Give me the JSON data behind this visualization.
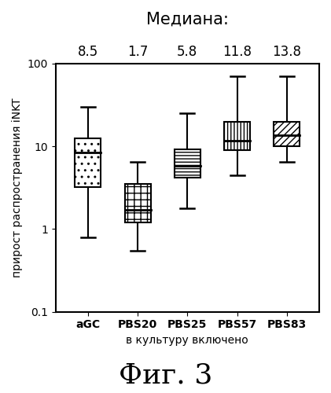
{
  "title": "Медиана:",
  "xlabel": "в культуру включено",
  "ylabel": "прирост распространения iNKT",
  "caption": "Фиг. 3",
  "categories": [
    "aGC",
    "PBS20",
    "PBS25",
    "PBS57",
    "PBS83"
  ],
  "medians": [
    8.5,
    1.7,
    5.8,
    11.8,
    13.8
  ],
  "boxes": [
    {
      "whislo": 0.8,
      "q1": 3.2,
      "med": 8.5,
      "q3": 12.5,
      "whishi": 30.0
    },
    {
      "whislo": 0.55,
      "q1": 1.2,
      "med": 1.7,
      "q3": 3.5,
      "whishi": 6.5
    },
    {
      "whislo": 1.8,
      "q1": 4.2,
      "med": 5.8,
      "q3": 9.2,
      "whishi": 25.0
    },
    {
      "whislo": 4.5,
      "q1": 9.0,
      "med": 11.8,
      "q3": 20.0,
      "whishi": 70.0
    },
    {
      "whislo": 6.5,
      "q1": 10.0,
      "med": 13.8,
      "q3": 20.0,
      "whishi": 70.0
    }
  ],
  "hatch_patterns": [
    "..",
    "++",
    "----",
    "||||",
    "////"
  ],
  "background_color": "#ffffff",
  "ylim_low": 0.1,
  "ylim_high": 100,
  "yticks": [
    0.1,
    1,
    10,
    100
  ],
  "title_fontsize": 15,
  "label_fontsize": 10,
  "tick_fontsize": 10,
  "median_label_fontsize": 12,
  "caption_fontsize": 26,
  "box_width": 0.52
}
